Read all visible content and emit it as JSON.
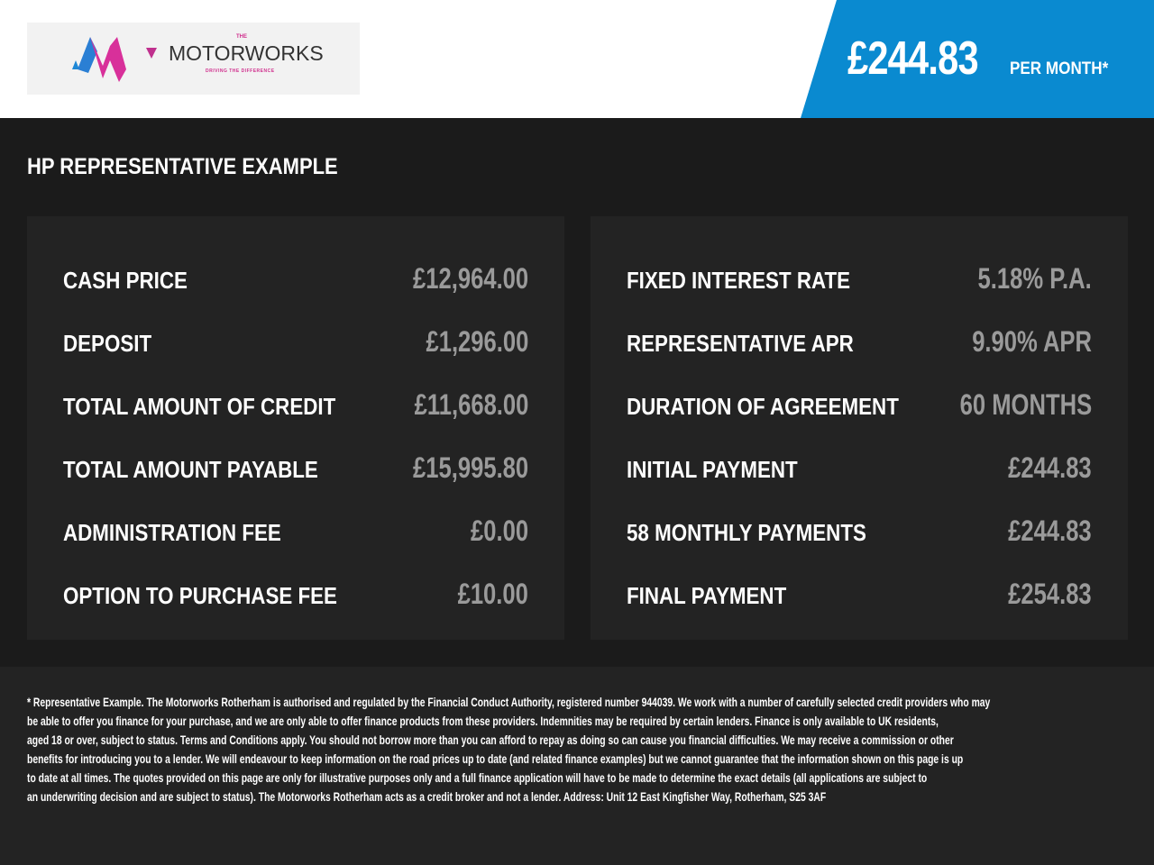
{
  "header": {
    "logo": {
      "the": "THE",
      "name": "MOTORWORKS",
      "tagline": "DRIVING THE DIFFERENCE"
    },
    "price": "£244.83",
    "per_month": "PER MONTH*",
    "accent_color": "#0a8ad0"
  },
  "title": "HP REPRESENTATIVE EXAMPLE",
  "left": [
    {
      "label": "CASH PRICE",
      "value": "£12,964.00"
    },
    {
      "label": "DEPOSIT",
      "value": "£1,296.00"
    },
    {
      "label": "TOTAL AMOUNT OF CREDIT",
      "value": "£11,668.00"
    },
    {
      "label": "TOTAL AMOUNT PAYABLE",
      "value": "£15,995.80"
    },
    {
      "label": "ADMINISTRATION FEE",
      "value": "£0.00"
    },
    {
      "label": "OPTION TO PURCHASE FEE",
      "value": "£10.00"
    }
  ],
  "right": [
    {
      "label": "FIXED INTEREST RATE",
      "value": "5.18% P.A."
    },
    {
      "label": "REPRESENTATIVE APR",
      "value": "9.90% APR"
    },
    {
      "label": "DURATION OF AGREEMENT",
      "value": "60 MONTHS"
    },
    {
      "label": "INITIAL PAYMENT",
      "value": "£244.83"
    },
    {
      "label": "58 MONTHLY PAYMENTS",
      "value": "£244.83"
    },
    {
      "label": "FINAL PAYMENT",
      "value": "£254.83"
    }
  ],
  "footer": [
    "* Representative Example. The Motorworks Rotherham is authorised and regulated by the Financial Conduct Authority, registered number 944039. We work with a number of carefully selected credit providers who may",
    "be able to offer you finance for your purchase, and we are only able to offer finance products from these providers. Indemnities may be required by certain lenders. Finance is only available to UK residents,",
    "aged 18 or over, subject to status. Terms and Conditions apply. You should not borrow more than you can afford to repay as doing so can cause you financial difficulties. We may receive a commission or other",
    "benefits for introducing you to a lender. We will endeavour to keep information on the road prices up to date (and related finance examples) but we cannot guarantee that the information shown on this page is up",
    "to date at all times. The quotes provided on this page are only for illustrative purposes only and a full finance application will have to be made to determine the exact details (all applications are subject to",
    "an underwriting decision and are subject to status). The Motorworks Rotherham acts as a credit broker and not a lender. Address: Unit 12 East Kingfisher Way, Rotherham, S25 3AF"
  ]
}
